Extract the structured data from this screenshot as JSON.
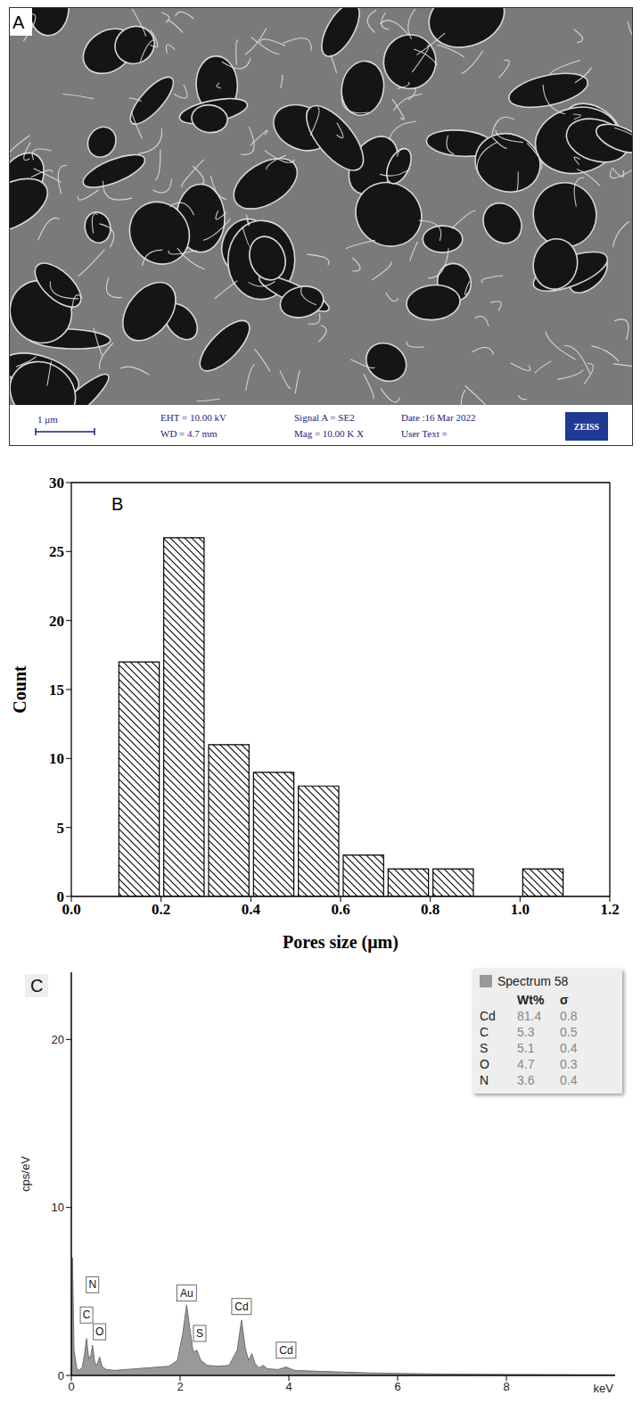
{
  "panel_a": {
    "letter": "A",
    "scale_bar": "1 μm",
    "info": [
      [
        "EHT = 10.00 kV",
        "WD = 4.7 mm"
      ],
      [
        "Signal A = SE2",
        "Mag = 10.00 K X"
      ],
      [
        "Date :16 Mar 2022",
        "User Text ="
      ]
    ],
    "logo": "ZEISS"
  },
  "chart_data": [
    {
      "type": "histogram",
      "panel": "B",
      "x_label": "Pores size (μm)",
      "y_label": "Count",
      "bins": [
        0.1,
        0.2,
        0.3,
        0.4,
        0.5,
        0.6,
        0.7,
        0.8,
        0.9,
        1.0,
        1.1
      ],
      "counts": [
        17,
        26,
        11,
        9,
        8,
        3,
        2,
        2,
        0,
        2
      ],
      "color": "#000000",
      "xlim": [
        0,
        1.2
      ],
      "xticks": [
        {
          "value": 0,
          "label": "0.0"
        },
        0.2,
        0.4,
        0.6,
        0.8,
        {
          "value": 1,
          "label": "1.0"
        },
        1.2
      ],
      "ylim": [
        0,
        30
      ],
      "yticks": [
        0,
        5,
        10,
        15,
        20,
        25,
        30
      ]
    },
    {
      "type": "area",
      "panel": "C",
      "x_label": "keV",
      "y_label": "cps/eV",
      "x": [
        0,
        0.02,
        0.05,
        0.1,
        0.15,
        0.2,
        0.24,
        0.28,
        0.32,
        0.36,
        0.39,
        0.43,
        0.47,
        0.52,
        0.57,
        0.65,
        0.8,
        1.0,
        1.2,
        1.4,
        1.6,
        1.8,
        1.95,
        2.05,
        2.12,
        2.18,
        2.24,
        2.31,
        2.38,
        2.5,
        2.7,
        2.9,
        3.05,
        3.13,
        3.2,
        3.26,
        3.32,
        3.38,
        3.45,
        3.53,
        3.6,
        3.8,
        3.95,
        4.1,
        4.5,
        5,
        5.5,
        6,
        7,
        8,
        9,
        10
      ],
      "values": [
        0,
        7.0,
        1.5,
        0.4,
        0.3,
        0.5,
        1.2,
        2.2,
        1.0,
        1.2,
        1.8,
        0.8,
        0.6,
        1.1,
        0.5,
        0.35,
        0.3,
        0.35,
        0.4,
        0.45,
        0.5,
        0.55,
        0.9,
        2.5,
        4.2,
        2.8,
        1.4,
        1.5,
        0.9,
        0.6,
        0.55,
        0.6,
        1.5,
        3.3,
        1.6,
        0.9,
        1.3,
        0.7,
        0.45,
        0.6,
        0.4,
        0.35,
        0.5,
        0.3,
        0.25,
        0.2,
        0.15,
        0.12,
        0.08,
        0.06,
        0.05,
        0.04
      ],
      "color": "#999999",
      "xlim": [
        0,
        10
      ],
      "xticks": [
        0,
        2,
        4,
        6,
        8
      ],
      "ylim": [
        0,
        24
      ],
      "yticks": [
        0,
        10,
        20
      ],
      "annotations": [
        {
          "text": "C",
          "x": 0.28,
          "y": 3.6
        },
        {
          "text": "N",
          "x": 0.39,
          "y": 5.4
        },
        {
          "text": "O",
          "x": 0.52,
          "y": 2.6
        },
        {
          "text": "Au",
          "x": 2.12,
          "y": 4.9
        },
        {
          "text": "S",
          "x": 2.36,
          "y": 2.5
        },
        {
          "text": "Cd",
          "x": 3.13,
          "y": 4.1
        },
        {
          "text": "Cd",
          "x": 3.95,
          "y": 1.5
        }
      ],
      "table": {
        "title": "Spectrum 58",
        "columns": [
          "Wt%",
          "σ"
        ],
        "rows": [
          [
            "Cd",
            81.4,
            0.8
          ],
          [
            "C",
            5.3,
            0.5
          ],
          [
            "S",
            5.1,
            0.4
          ],
          [
            "O",
            4.7,
            0.3
          ],
          [
            "N",
            3.6,
            0.4
          ]
        ]
      }
    }
  ]
}
